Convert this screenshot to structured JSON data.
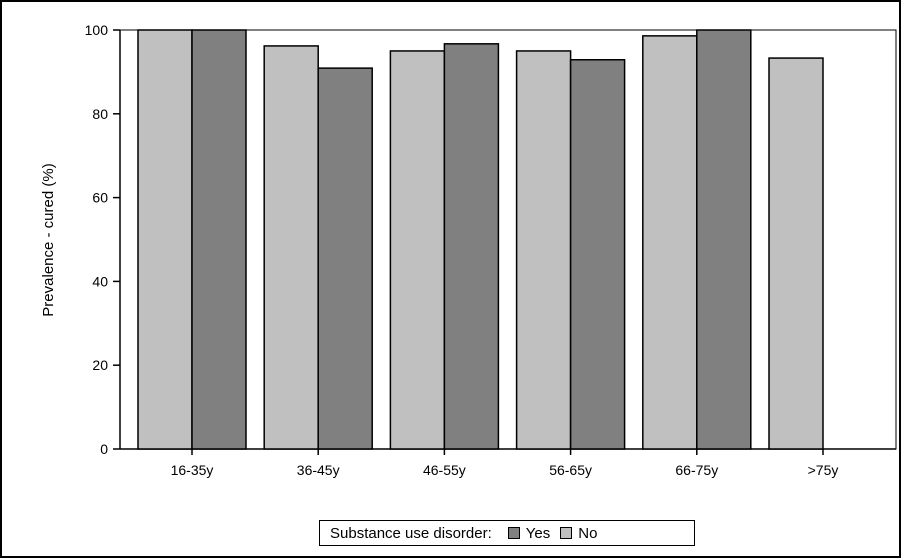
{
  "chart_data": {
    "type": "bar",
    "categories": [
      "16-35y",
      "36-45y",
      "46-55y",
      "56-65y",
      "66-75y",
      ">75y"
    ],
    "series": [
      {
        "name": "No",
        "values": [
          100,
          96.2,
          95,
          95,
          98.6,
          93.3
        ],
        "color": "#c0c0c0"
      },
      {
        "name": "Yes",
        "values": [
          100,
          90.9,
          96.7,
          92.9,
          100,
          null
        ],
        "color": "#808080"
      }
    ],
    "ylabel": "Prevalence - cured (%)",
    "ylim": [
      0,
      100
    ],
    "yticks": [
      0,
      20,
      40,
      60,
      80,
      100
    ],
    "grid": false,
    "legend": {
      "title": "Substance use disorder:",
      "items": [
        {
          "label": "Yes",
          "color": "#808080"
        },
        {
          "label": "No",
          "color": "#c0c0c0"
        }
      ],
      "placement": "bottom"
    }
  }
}
